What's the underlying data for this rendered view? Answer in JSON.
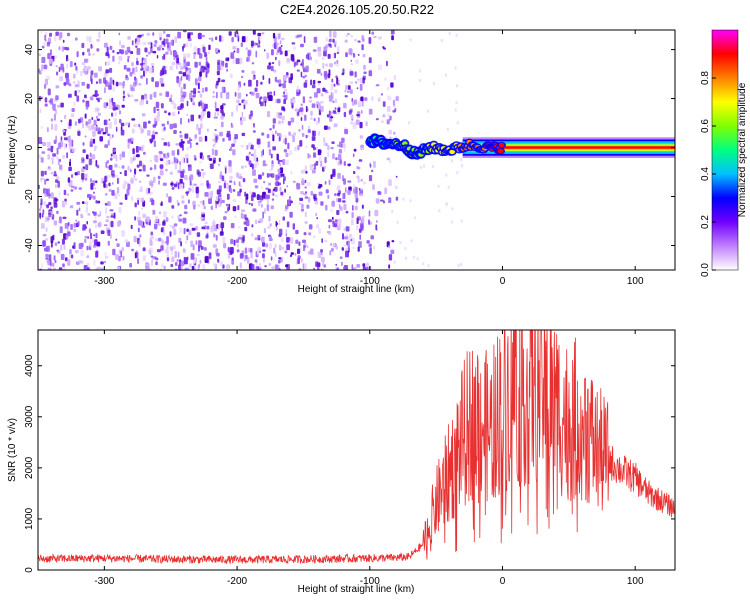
{
  "title": "C2E4.2026.105.20.50.R22",
  "chart_data": [
    {
      "type": "heatmap",
      "xlabel": "Height of straight line (km)",
      "ylabel": "Frequency (Hz)",
      "xlim": [
        -350,
        130
      ],
      "ylim": [
        -50,
        48
      ],
      "x_ticks": [
        -300,
        -200,
        -100,
        0,
        100
      ],
      "y_ticks": [
        -40,
        -20,
        0,
        20,
        40
      ],
      "colorbar": {
        "label": "Normalized spectral amplitude",
        "range": [
          0,
          1
        ],
        "ticks": [
          "0.0",
          "0.2",
          "0.4",
          "0.6",
          "0.8"
        ],
        "tick_values": [
          0.0,
          0.2,
          0.4,
          0.6,
          0.8
        ],
        "colors": [
          "#ffffff",
          "#c080ff",
          "#7000ff",
          "#0000ff",
          "#00c0ff",
          "#00ff80",
          "#80ff00",
          "#ffff00",
          "#ff8000",
          "#ff0000",
          "#ff00ff"
        ]
      },
      "noise_region": {
        "x_start": -350,
        "x_end": -80,
        "typical_amplitude": 0.1
      },
      "signal_track": [
        {
          "x": -100,
          "freq": 3,
          "amplitude": 0.25
        },
        {
          "x": -90,
          "freq": 2,
          "amplitude": 0.3
        },
        {
          "x": -75,
          "freq": 1,
          "amplitude": 0.4
        },
        {
          "x": -65,
          "freq": -3,
          "amplitude": 0.35
        },
        {
          "x": -55,
          "freq": 0,
          "amplitude": 0.5
        },
        {
          "x": -40,
          "freq": -1,
          "amplitude": 0.6
        },
        {
          "x": -25,
          "freq": 1,
          "amplitude": 0.75
        },
        {
          "x": -10,
          "freq": 0,
          "amplitude": 0.85
        },
        {
          "x": 0,
          "freq": 0,
          "amplitude": 0.95
        },
        {
          "x": 130,
          "freq": 0,
          "amplitude": 0.95
        }
      ]
    },
    {
      "type": "line",
      "xlabel": "Height of straight line (km)",
      "ylabel": "SNR (10 * v/v)",
      "xlim": [
        -350,
        130
      ],
      "ylim": [
        0,
        4700
      ],
      "x_ticks": [
        -300,
        -200,
        -100,
        0,
        100
      ],
      "y_ticks": [
        0,
        1000,
        2000,
        3000,
        4000
      ],
      "color": "#e83030",
      "x": [
        -350,
        -300,
        -250,
        -200,
        -150,
        -100,
        -80,
        -70,
        -60,
        -50,
        -40,
        -30,
        -20,
        -10,
        0,
        10,
        20,
        30,
        40,
        50,
        60,
        70,
        80,
        90,
        100,
        110,
        120,
        130
      ],
      "y": [
        220,
        230,
        210,
        200,
        210,
        230,
        240,
        260,
        500,
        1300,
        1900,
        2600,
        3100,
        2700,
        3300,
        3700,
        3500,
        3650,
        3250,
        2900,
        3000,
        2400,
        2150,
        1950,
        1800,
        1500,
        1350,
        1200
      ]
    }
  ]
}
